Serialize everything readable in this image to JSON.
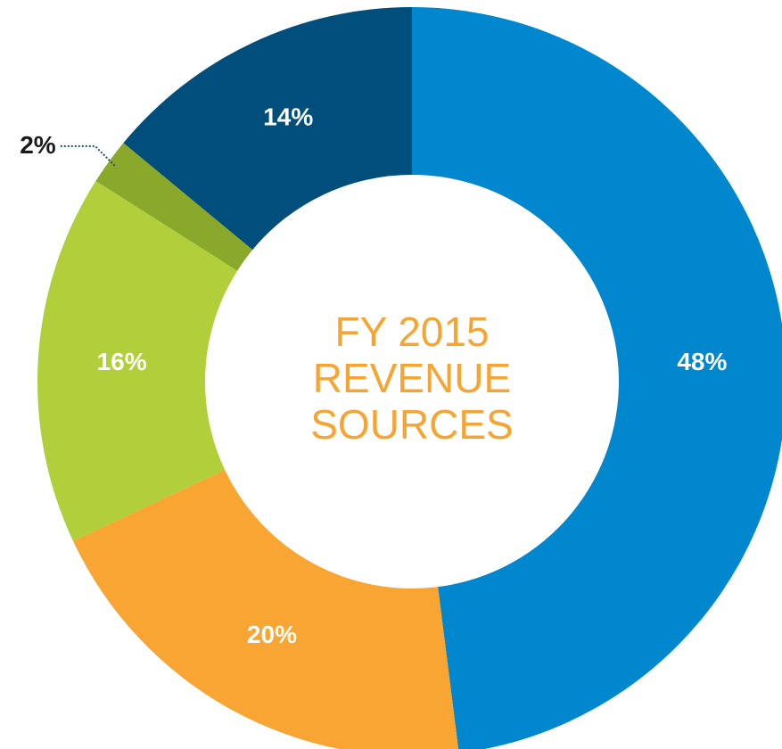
{
  "chart_data": {
    "type": "donut",
    "title": [
      "FY 2015",
      "REVENUE",
      "SOURCES"
    ],
    "values": [
      48,
      20,
      16,
      2,
      14
    ],
    "value_labels": [
      "48%",
      "20%",
      "16%",
      "2%",
      "14%"
    ],
    "colors": [
      "#0087cd",
      "#f8a533",
      "#b0cf3a",
      "#8aa82a",
      "#004e7b"
    ]
  }
}
